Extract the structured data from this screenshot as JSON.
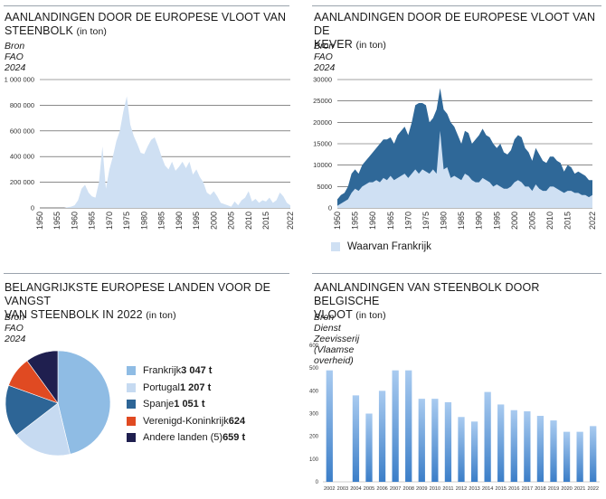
{
  "panels": {
    "tl": {
      "title_line1": "AANLANDINGEN DOOR DE EUROPESE VLOOT VAN",
      "title_line2": "STEENBOLK",
      "unit": "(in ton)",
      "source": "Bron FAO 2024"
    },
    "tr": {
      "title_line1": "AANLANDINGEN DOOR DE EUROPESE VLOOT VAN DE",
      "title_line2": "KEVER",
      "unit": "(in ton)",
      "source": "Bron FAO 2024"
    },
    "bl": {
      "title_line1": "BELANGRIJKSTE EUROPESE LANDEN VOOR DE VANGST",
      "title_line2": "VAN STEENBOLK IN 2022",
      "unit": "(in ton)",
      "source": "Bron FAO 2024"
    },
    "br": {
      "title_line1": "AANLANDINGEN VAN STEENBOLK DOOR BELGISCHE",
      "title_line2": "VLOOT",
      "unit": "(in ton)",
      "source": "Bron Dienst Zeevisserij (Vlaamse overheid)"
    }
  },
  "colors": {
    "light_area": "#cfe0f3",
    "dark_area": "#2f6898",
    "bar_top": "#a9cbf0",
    "bar_bottom": "#3b7ec8",
    "pie": [
      "#8fbce4",
      "#c6daf1",
      "#2d6596",
      "#e04a22",
      "#1f1f4f"
    ]
  },
  "chart_data": [
    {
      "type": "area",
      "title": "AANLANDINGEN DOOR DE EUROPESE VLOOT VAN STEENBOLK (in ton)",
      "ylim": [
        0,
        1000000
      ],
      "y_ticks": [
        "0",
        "200 000",
        "400 000",
        "600 000",
        "800 000",
        "1 000 000"
      ],
      "x_ticks": [
        "1950",
        "1955",
        "1960",
        "1965",
        "1970",
        "1975",
        "1980",
        "1985",
        "1990",
        "1995",
        "2000",
        "2005",
        "2010",
        "2015",
        "2022"
      ],
      "grid": true,
      "x": [
        1950,
        1951,
        1952,
        1953,
        1954,
        1955,
        1956,
        1957,
        1958,
        1959,
        1960,
        1961,
        1962,
        1963,
        1964,
        1965,
        1966,
        1967,
        1968,
        1969,
        1970,
        1971,
        1972,
        1973,
        1974,
        1975,
        1976,
        1977,
        1978,
        1979,
        1980,
        1981,
        1982,
        1983,
        1984,
        1985,
        1986,
        1987,
        1988,
        1989,
        1990,
        1991,
        1992,
        1993,
        1994,
        1995,
        1996,
        1997,
        1998,
        1999,
        2000,
        2001,
        2002,
        2003,
        2004,
        2005,
        2006,
        2007,
        2008,
        2009,
        2010,
        2011,
        2012,
        2013,
        2014,
        2015,
        2016,
        2017,
        2018,
        2019,
        2020,
        2021,
        2022
      ],
      "series": [
        {
          "values": [
            0,
            0,
            0,
            0,
            0,
            0,
            0,
            0,
            5000,
            10000,
            20000,
            60000,
            150000,
            180000,
            120000,
            90000,
            80000,
            200000,
            480000,
            150000,
            300000,
            400000,
            520000,
            600000,
            750000,
            870000,
            650000,
            560000,
            500000,
            430000,
            420000,
            480000,
            530000,
            550000,
            480000,
            400000,
            330000,
            300000,
            360000,
            290000,
            320000,
            360000,
            310000,
            360000,
            260000,
            300000,
            240000,
            200000,
            120000,
            100000,
            130000,
            90000,
            40000,
            30000,
            20000,
            10000,
            50000,
            20000,
            60000,
            80000,
            130000,
            50000,
            70000,
            40000,
            60000,
            50000,
            80000,
            40000,
            60000,
            120000,
            90000,
            40000,
            20000
          ]
        }
      ]
    },
    {
      "type": "area",
      "title": "AANLANDINGEN DOOR DE EUROPESE VLOOT VAN DE KEVER (in ton)",
      "ylim": [
        0,
        30000
      ],
      "y_ticks": [
        "0",
        "5000",
        "10000",
        "15000",
        "20000",
        "25000",
        "30000"
      ],
      "x_ticks": [
        "1950",
        "1955",
        "1960",
        "1965",
        "1970",
        "1975",
        "1980",
        "1985",
        "1990",
        "1995",
        "2000",
        "2005",
        "2010",
        "2015",
        "2022"
      ],
      "grid": true,
      "x": [
        1950,
        1951,
        1952,
        1953,
        1954,
        1955,
        1956,
        1957,
        1958,
        1959,
        1960,
        1961,
        1962,
        1963,
        1964,
        1965,
        1966,
        1967,
        1968,
        1969,
        1970,
        1971,
        1972,
        1973,
        1974,
        1975,
        1976,
        1977,
        1978,
        1979,
        1980,
        1981,
        1982,
        1983,
        1984,
        1985,
        1986,
        1987,
        1988,
        1989,
        1990,
        1991,
        1992,
        1993,
        1994,
        1995,
        1996,
        1997,
        1998,
        1999,
        2000,
        2001,
        2002,
        2003,
        2004,
        2005,
        2006,
        2007,
        2008,
        2009,
        2010,
        2011,
        2012,
        2013,
        2014,
        2015,
        2016,
        2017,
        2018,
        2019,
        2020,
        2021,
        2022
      ],
      "series": [
        {
          "values": [
            2000,
            3000,
            3500,
            5000,
            8000,
            9000,
            8000,
            10000,
            11000,
            12000,
            13000,
            14000,
            15000,
            16000,
            16000,
            16500,
            15000,
            17000,
            18000,
            19000,
            17000,
            20000,
            24000,
            24500,
            24500,
            24000,
            20000,
            21000,
            23000,
            28000,
            23000,
            22000,
            20000,
            19000,
            17000,
            15000,
            18000,
            17500,
            15000,
            16000,
            17000,
            18500,
            17000,
            16500,
            15000,
            14000,
            15000,
            13000,
            12500,
            13500,
            16000,
            17000,
            16500,
            14000,
            13000,
            11000,
            14000,
            12500,
            11000,
            10500,
            12000,
            12000,
            11000,
            10500,
            8500,
            10000,
            9500,
            8000,
            8500,
            8000,
            7500,
            6500,
            6500
          ]
        },
        {
          "name": "Waarvan Frankrijk",
          "values": [
            500,
            1000,
            1500,
            2000,
            3500,
            4500,
            4000,
            5000,
            5500,
            6000,
            6000,
            6500,
            6000,
            7000,
            6500,
            7500,
            6500,
            7000,
            7500,
            8000,
            7000,
            8000,
            9000,
            8000,
            9000,
            8500,
            8000,
            9000,
            8000,
            18000,
            9000,
            9500,
            7000,
            7500,
            7000,
            6500,
            8000,
            7500,
            6500,
            6000,
            6000,
            7000,
            6500,
            6000,
            5000,
            5500,
            5000,
            4500,
            4500,
            5000,
            6000,
            6500,
            6000,
            5000,
            5000,
            4000,
            5500,
            4500,
            4000,
            4000,
            5000,
            5000,
            4500,
            4000,
            3500,
            4000,
            4000,
            3500,
            3500,
            3000,
            3000,
            2500,
            3000
          ]
        }
      ],
      "legend": "bottom-left"
    },
    {
      "type": "pie",
      "title": "BELANGRIJKSTE EUROPESE LANDEN VOOR DE VANGST VAN STEENBOLK IN 2022 (in ton)",
      "legend": "right",
      "slices": [
        {
          "name": "Frankrijk",
          "value_label": "3 047 t",
          "value": 3047
        },
        {
          "name": "Portugal",
          "value_label": "1 207 t",
          "value": 1207
        },
        {
          "name": "Spanje",
          "value_label": "1 051 t",
          "value": 1051
        },
        {
          "name": "Verenigd-Koninkrijk",
          "value_label": "624",
          "value": 624
        },
        {
          "name": "Andere landen (5)",
          "value_label": "659 t",
          "value": 659
        }
      ]
    },
    {
      "type": "bar",
      "title": "AANLANDINGEN VAN STEENBOLK DOOR BELGISCHE VLOOT (in ton)",
      "ylim": [
        0,
        600
      ],
      "y_ticks": [
        "0",
        "100",
        "200",
        "300",
        "400",
        "500",
        "600"
      ],
      "categories": [
        "2002",
        "2003",
        "2004",
        "2005",
        "2006",
        "2007",
        "2008",
        "2009",
        "2010",
        "2011",
        "2012",
        "2013",
        "2014",
        "2015",
        "2016",
        "2017",
        "2018",
        "2019",
        "2020",
        "2021",
        "2022"
      ],
      "values": [
        490,
        0,
        380,
        300,
        400,
        490,
        490,
        365,
        365,
        350,
        285,
        265,
        395,
        340,
        315,
        310,
        290,
        270,
        220,
        220,
        245
      ]
    }
  ]
}
